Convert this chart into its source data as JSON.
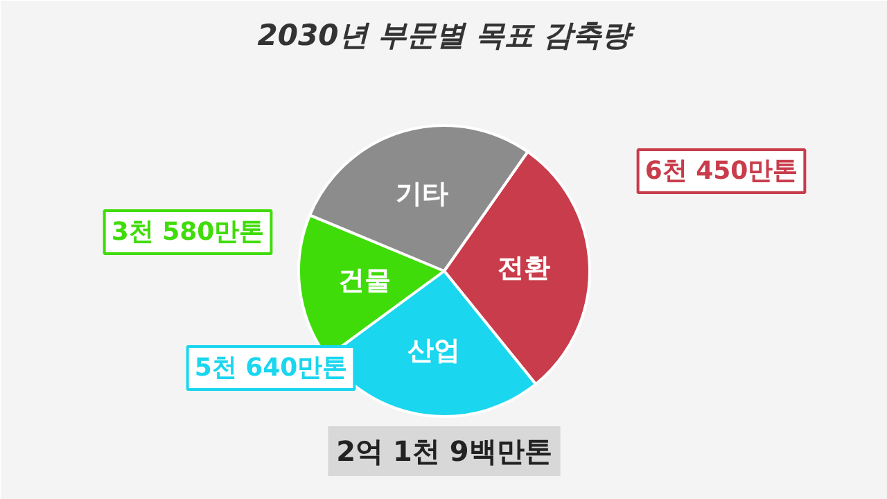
{
  "chart_data": {
    "type": "pie",
    "title": "2030년 부문별 목표 감축량",
    "categories": [
      "전환",
      "산업",
      "건물",
      "기타"
    ],
    "values": [
      29.45,
      25.75,
      16.35,
      28.45
    ],
    "colors": [
      "#c83c4b",
      "#1ad6ee",
      "#3fdc0a",
      "#8c8c8c"
    ],
    "annotations": [
      "2억 1천 9백만톤",
      "6천 450만톤",
      "5천 640만톤",
      "3천 580만톤"
    ]
  }
}
